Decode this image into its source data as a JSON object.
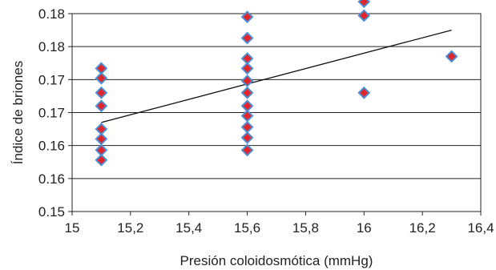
{
  "chart_data": {
    "type": "scatter",
    "xlabel": "Presión coloidosmótica (mmHg)",
    "ylabel": "Índice de briones",
    "xlim": [
      15,
      16.4
    ],
    "ylim": [
      0.15,
      0.18
    ],
    "x_ticks": [
      "15",
      "15,2",
      "15,4",
      "15,6",
      "15,8",
      "16",
      "16,2",
      "16,4"
    ],
    "y_ticks": [
      "0.15",
      "0.16",
      "0.16",
      "0.17",
      "0.17",
      "0.18",
      "0.18"
    ],
    "grid": "horizontal",
    "series": [
      {
        "marker": "diamond",
        "points": [
          {
            "x": 15.1,
            "y": 0.1717
          },
          {
            "x": 15.1,
            "y": 0.1702
          },
          {
            "x": 15.1,
            "y": 0.168
          },
          {
            "x": 15.1,
            "y": 0.166
          },
          {
            "x": 15.1,
            "y": 0.1625
          },
          {
            "x": 15.1,
            "y": 0.161
          },
          {
            "x": 15.1,
            "y": 0.1593
          },
          {
            "x": 15.1,
            "y": 0.1578
          },
          {
            "x": 15.6,
            "y": 0.1795
          },
          {
            "x": 15.6,
            "y": 0.1763
          },
          {
            "x": 15.6,
            "y": 0.1732
          },
          {
            "x": 15.6,
            "y": 0.1717
          },
          {
            "x": 15.6,
            "y": 0.1698
          },
          {
            "x": 15.6,
            "y": 0.168
          },
          {
            "x": 15.6,
            "y": 0.166
          },
          {
            "x": 15.6,
            "y": 0.1645
          },
          {
            "x": 15.6,
            "y": 0.1628
          },
          {
            "x": 15.6,
            "y": 0.1612
          },
          {
            "x": 15.6,
            "y": 0.1593
          },
          {
            "x": 16.0,
            "y": 0.1818
          },
          {
            "x": 16.0,
            "y": 0.1797
          },
          {
            "x": 16.0,
            "y": 0.168
          },
          {
            "x": 16.3,
            "y": 0.1735
          }
        ]
      }
    ],
    "trendline": {
      "x": [
        15.1,
        16.3
      ],
      "y": [
        0.1635,
        0.1775
      ]
    },
    "marker_fill": "#e0262b",
    "marker_stroke": "#4a90d9"
  }
}
